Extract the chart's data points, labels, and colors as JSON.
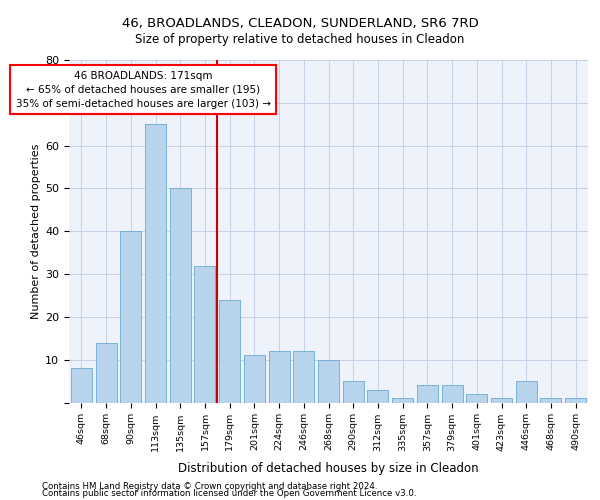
{
  "title1": "46, BROADLANDS, CLEADON, SUNDERLAND, SR6 7RD",
  "title2": "Size of property relative to detached houses in Cleadon",
  "xlabel": "Distribution of detached houses by size in Cleadon",
  "ylabel": "Number of detached properties",
  "categories": [
    "46sqm",
    "68sqm",
    "90sqm",
    "113sqm",
    "135sqm",
    "157sqm",
    "179sqm",
    "201sqm",
    "224sqm",
    "246sqm",
    "268sqm",
    "290sqm",
    "312sqm",
    "335sqm",
    "357sqm",
    "379sqm",
    "401sqm",
    "423sqm",
    "446sqm",
    "468sqm",
    "490sqm"
  ],
  "values": [
    8,
    14,
    40,
    65,
    50,
    32,
    24,
    11,
    12,
    12,
    10,
    5,
    3,
    1,
    4,
    4,
    2,
    1,
    5,
    1,
    1
  ],
  "bar_color": "#b8d4ed",
  "bar_edge_color": "#6aaad4",
  "vline_x": 5.5,
  "annotation_line1": "46 BROADLANDS: 171sqm",
  "annotation_line2": "← 65% of detached houses are smaller (195)",
  "annotation_line3": "35% of semi-detached houses are larger (103) →",
  "annotation_box_color": "white",
  "annotation_box_edge": "red",
  "ylim": [
    0,
    80
  ],
  "yticks": [
    0,
    10,
    20,
    30,
    40,
    50,
    60,
    70,
    80
  ],
  "footer1": "Contains HM Land Registry data © Crown copyright and database right 2024.",
  "footer2": "Contains public sector information licensed under the Open Government Licence v3.0.",
  "bg_color": "#eef2fb",
  "grid_color": "#c8d0e8"
}
